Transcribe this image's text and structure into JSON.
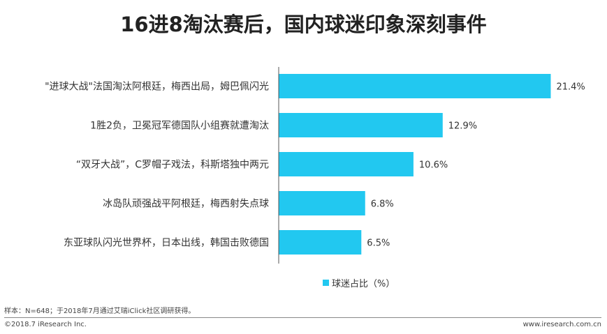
{
  "chart_data": {
    "type": "bar",
    "orientation": "horizontal",
    "title": "16进8淘汰赛后，国内球迷印象深刻事件",
    "categories": [
      "\"进球大战\"法国淘汰阿根廷，梅西出局，姆巴佩闪光",
      "1胜2负，卫冕冠军德国队小组赛就遭淘汰",
      "“双牙大战”，C罗帽子戏法，科斯塔独中两元",
      "冰岛队顽强战平阿根廷，梅西射失点球",
      "东亚球队闪光世界杯，日本出线，韩国击败德国"
    ],
    "series": [
      {
        "name": "球迷占比（%）",
        "values": [
          21.4,
          12.9,
          10.6,
          6.8,
          6.5
        ]
      }
    ],
    "value_labels": [
      "21.4%",
      "12.9%",
      "10.6%",
      "6.8%",
      "6.5%"
    ],
    "grid": false,
    "legend_placement": "bottom",
    "bar_color": "#22c8f0"
  },
  "footer": {
    "note": "样本：N=648；于2018年7月通过艾瑞iClick社区调研获得。",
    "copyright": "©2018.7 iResearch Inc.",
    "website": "www.iresearch.com.cn"
  }
}
